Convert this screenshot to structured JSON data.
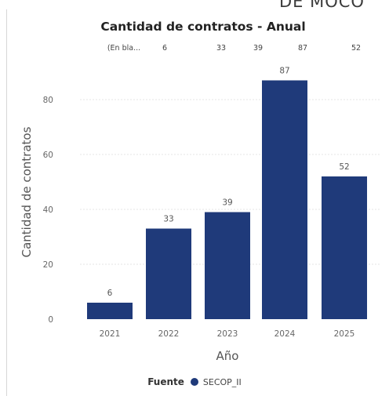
{
  "page": {
    "top_cut_text": "DE MOCO"
  },
  "chart_data": {
    "type": "bar",
    "title": "Cantidad de contratos - Anual",
    "xlabel": "Año",
    "ylabel": "Cantidad de contratos",
    "categories": [
      "2021",
      "2022",
      "2023",
      "2024",
      "2025"
    ],
    "series": [
      {
        "name": "SECOP_II",
        "values": [
          6,
          33,
          39,
          87,
          52
        ]
      }
    ],
    "ylim": [
      0,
      90
    ],
    "yticks": [
      0,
      20,
      40,
      60,
      80
    ],
    "grid": true,
    "bar_color": "#1f3a7a",
    "data_labels": [
      "6",
      "33",
      "39",
      "87",
      "52"
    ],
    "top_row": {
      "items": [
        "(En bla...",
        "6",
        "33",
        "39",
        "87",
        "52"
      ]
    },
    "legend": {
      "title": "Fuente",
      "items": [
        {
          "label": "SECOP_II",
          "color": "#1f3a7a"
        }
      ],
      "position": "bottom-center"
    }
  }
}
